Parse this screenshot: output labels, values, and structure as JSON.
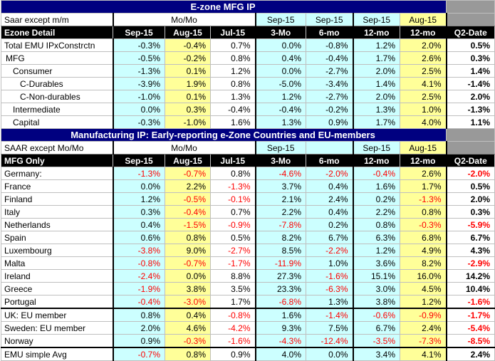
{
  "columns": [
    "Sep-15",
    "Aug-15",
    "Jul-15",
    "3-Mo",
    "6-mo",
    "12-mo",
    "12-mo",
    "Q2-Date"
  ],
  "top_title": "E-zone MFG IP",
  "top_header1": {
    "label": "Saar except m/m",
    "group1": "Mo/Mo",
    "c4": "Sep-15",
    "c5": "Sep-15",
    "c6": "Sep-15",
    "c7": "Aug-15"
  },
  "top_header2_label": "Ezone Detail",
  "top_rows": [
    {
      "label": "Total EMU IPxConstrctn",
      "vals": [
        "-0.3%",
        "-0.4%",
        "0.7%",
        "0.0%",
        "-0.8%",
        "1.2%",
        "2.0%",
        "0.5%"
      ]
    },
    {
      "label": "MFG",
      "vals": [
        "-0.5%",
        "-0.2%",
        "0.8%",
        "0.4%",
        "-0.4%",
        "1.7%",
        "2.6%",
        "0.3%"
      ]
    },
    {
      "label": "Consumer",
      "vals": [
        "-1.3%",
        "0.1%",
        "1.2%",
        "0.0%",
        "-2.7%",
        "2.0%",
        "2.5%",
        "1.4%"
      ]
    },
    {
      "label": "C-Durables",
      "vals": [
        "-3.9%",
        "1.9%",
        "0.8%",
        "-5.0%",
        "-3.4%",
        "1.4%",
        "4.1%",
        "-1.4%"
      ]
    },
    {
      "label": "C-Non-durables",
      "vals": [
        "-1.0%",
        "0.1%",
        "1.3%",
        "1.2%",
        "-2.7%",
        "2.0%",
        "2.5%",
        "2.0%"
      ]
    },
    {
      "label": "Intermediate",
      "vals": [
        "0.0%",
        "0.3%",
        "-0.4%",
        "-0.4%",
        "-0.2%",
        "1.3%",
        "1.0%",
        "-1.3%"
      ]
    },
    {
      "label": "Capital",
      "vals": [
        "-0.3%",
        "-1.0%",
        "1.6%",
        "1.3%",
        "0.9%",
        "1.7%",
        "4.0%",
        "1.1%"
      ]
    }
  ],
  "bottom_title": "Manufacturing IP: Early-reporting e-Zone Countries and EU-members",
  "bottom_header1": {
    "label": "SAAR except Mo/Mo",
    "group1": "Mo/Mo",
    "c4": "Sep-15",
    "c5": "",
    "c6": "Sep-15",
    "c7": "Aug-15"
  },
  "bottom_header2_label": "MFG Only",
  "countries": [
    {
      "label": "Germany:",
      "vals": [
        "-1.3%",
        "-0.7%",
        "0.8%",
        "-4.6%",
        "-2.0%",
        "-0.4%",
        "2.6%",
        "-2.0%"
      ]
    },
    {
      "label": "France",
      "vals": [
        "0.0%",
        "2.2%",
        "-1.3%",
        "3.7%",
        "0.4%",
        "1.6%",
        "1.7%",
        "0.5%"
      ]
    },
    {
      "label": "Finland",
      "vals": [
        "1.2%",
        "-0.5%",
        "-0.1%",
        "2.1%",
        "2.4%",
        "0.2%",
        "-1.3%",
        "2.0%"
      ]
    },
    {
      "label": " Italy",
      "vals": [
        "0.3%",
        "-0.4%",
        "0.7%",
        "2.2%",
        "0.4%",
        "2.2%",
        "0.8%",
        "0.3%"
      ]
    },
    {
      "label": "Netherlands",
      "vals": [
        "0.4%",
        "-1.5%",
        "-0.9%",
        "-7.8%",
        "0.2%",
        "0.8%",
        "-0.3%",
        "-5.9%"
      ]
    },
    {
      "label": "Spain",
      "vals": [
        "0.6%",
        "0.8%",
        "0.5%",
        "8.2%",
        "6.7%",
        "6.3%",
        "6.8%",
        "6.7%"
      ]
    },
    {
      "label": "Luxembourg",
      "vals": [
        "-3.8%",
        "9.0%",
        "-2.7%",
        "8.5%",
        "-2.2%",
        "1.2%",
        "4.9%",
        "4.3%"
      ]
    },
    {
      "label": "Malta",
      "vals": [
        "-0.8%",
        "-0.7%",
        "-1.7%",
        "-11.9%",
        "1.0%",
        "3.6%",
        "8.2%",
        "-2.9%"
      ]
    },
    {
      "label": "Ireland",
      "vals": [
        "-2.4%",
        "0.0%",
        "8.8%",
        "27.3%",
        "-1.6%",
        "15.1%",
        "16.0%",
        "14.2%"
      ]
    },
    {
      "label": "Greece",
      "vals": [
        "-1.9%",
        "3.8%",
        "3.5%",
        "23.3%",
        "-6.3%",
        "3.0%",
        "4.5%",
        "10.4%"
      ]
    },
    {
      "label": "Portugal",
      "vals": [
        "-0.4%",
        "-3.0%",
        "1.7%",
        "-6.8%",
        "1.3%",
        "3.8%",
        "1.2%",
        "-1.6%"
      ]
    }
  ],
  "eu_members": [
    {
      "label": "UK: EU member",
      "vals": [
        "0.8%",
        "0.4%",
        "-0.8%",
        "1.6%",
        "-1.4%",
        "-0.6%",
        "-0.9%",
        "-1.7%"
      ]
    },
    {
      "label": "Sweden: EU member",
      "vals": [
        "2.0%",
        "4.6%",
        "-4.2%",
        "9.3%",
        "7.5%",
        "6.7%",
        "2.4%",
        "-5.4%"
      ]
    },
    {
      "label": "Norway",
      "vals": [
        "0.9%",
        "-0.3%",
        "-1.6%",
        "-4.3%",
        "-12.4%",
        "-3.5%",
        "-7.3%",
        "-8.5%"
      ]
    }
  ],
  "avg_row": {
    "label": "EMU simple Avg",
    "vals": [
      "-0.7%",
      "0.8%",
      "0.9%",
      "4.0%",
      "0.0%",
      "3.4%",
      "4.1%",
      "2.4%"
    ]
  }
}
